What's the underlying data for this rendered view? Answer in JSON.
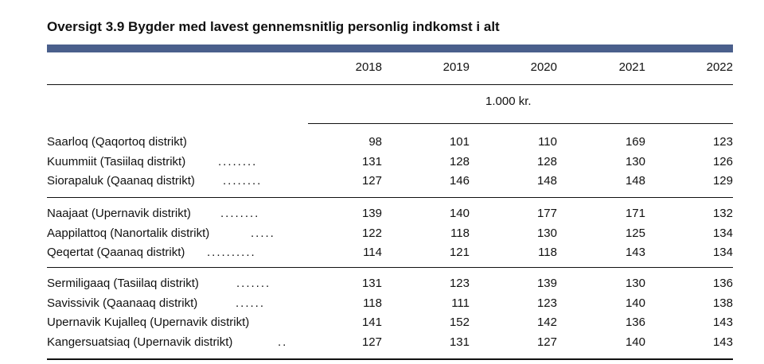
{
  "title": "Oversigt 3.9 Bygder med lavest gennemsnitlig personlig indkomst i alt",
  "years": [
    "2018",
    "2019",
    "2020",
    "2021",
    "2022"
  ],
  "unit": "1.000 kr.",
  "groups": [
    {
      "rows": [
        {
          "label": "Saarloq (Qaqortoq distrikt)",
          "dots": "",
          "values": [
            "98",
            "101",
            "110",
            "169",
            "123"
          ]
        },
        {
          "label": "Kuummiit (Tasiilaq distrikt)",
          "dots": "........",
          "values": [
            "131",
            "128",
            "128",
            "130",
            "126"
          ]
        },
        {
          "label": "Siorapaluk (Qaanaq distrikt)",
          "dots": "........",
          "values": [
            "127",
            "146",
            "148",
            "148",
            "129"
          ]
        }
      ]
    },
    {
      "rows": [
        {
          "label": "Naajaat (Upernavik distrikt)",
          "dots": "........",
          "values": [
            "139",
            "140",
            "177",
            "171",
            "132"
          ]
        },
        {
          "label": "Aappilattoq (Nanortalik distrikt)",
          "dots": ".....",
          "values": [
            "122",
            "118",
            "130",
            "125",
            "134"
          ]
        },
        {
          "label": "Qeqertat (Qaanaq distrikt)",
          "dots": "..........",
          "values": [
            "114",
            "121",
            "118",
            "143",
            "134"
          ]
        }
      ]
    },
    {
      "rows": [
        {
          "label": "Sermiligaaq (Tasiilaq distrikt)",
          "dots": ".......",
          "values": [
            "131",
            "123",
            "139",
            "130",
            "136"
          ]
        },
        {
          "label": "Savissivik (Qaanaaq distrikt)",
          "dots": "......",
          "values": [
            "118",
            "111",
            "123",
            "140",
            "138"
          ]
        },
        {
          "label": "Upernavik Kujalleq (Upernavik distrikt)",
          "dots": "",
          "values": [
            "141",
            "152",
            "142",
            "136",
            "143"
          ]
        },
        {
          "label": "Kangersuatsiaq (Upernavik distrikt)",
          "dots": "..",
          "values": [
            "127",
            "131",
            "127",
            "140",
            "143"
          ]
        }
      ]
    }
  ]
}
